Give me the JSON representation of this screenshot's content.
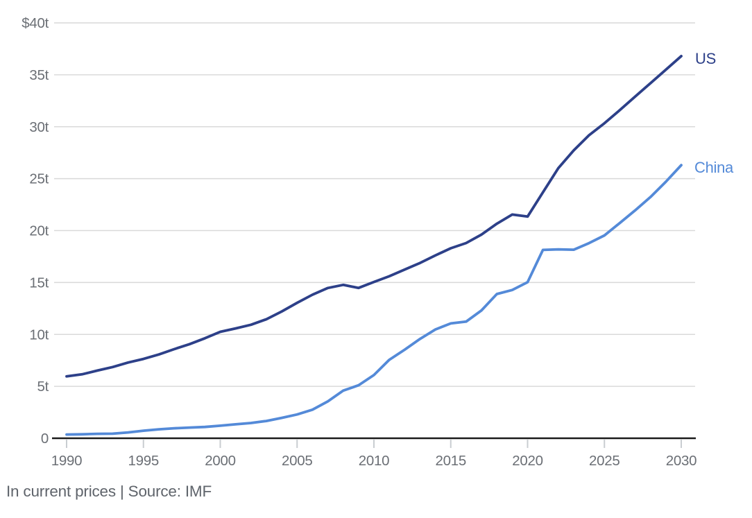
{
  "chart_data": {
    "type": "line",
    "title": "",
    "xlabel": "",
    "ylabel": "",
    "caption": "In current prices | Source: IMF",
    "grid": true,
    "legend_position": "end-of-line-right",
    "xlim": [
      1990,
      2030
    ],
    "ylim": [
      0,
      40
    ],
    "xticks": [
      1990,
      1995,
      2000,
      2005,
      2010,
      2015,
      2020,
      2025,
      2030
    ],
    "yticks": [
      {
        "value": 40,
        "label": "$40t"
      },
      {
        "value": 35,
        "label": "35t"
      },
      {
        "value": 30,
        "label": "30t"
      },
      {
        "value": 25,
        "label": "25t"
      },
      {
        "value": 20,
        "label": "20t"
      },
      {
        "value": 15,
        "label": "15t"
      },
      {
        "value": 10,
        "label": "10t"
      },
      {
        "value": 5,
        "label": "5t"
      },
      {
        "value": 0,
        "label": "0"
      }
    ],
    "colors": {
      "grid": "#d9d9d9",
      "axis": "#1a1a1a",
      "tick_mark": "#c9cdd1",
      "tick_text": "#6b6f75",
      "caption_text": "#5f646b",
      "us": "#2d4089",
      "china": "#548ad8"
    },
    "x": [
      1990,
      1991,
      1992,
      1993,
      1994,
      1995,
      1996,
      1997,
      1998,
      1999,
      2000,
      2001,
      2002,
      2003,
      2004,
      2005,
      2006,
      2007,
      2008,
      2009,
      2010,
      2011,
      2012,
      2013,
      2014,
      2015,
      2016,
      2017,
      2018,
      2019,
      2020,
      2021,
      2022,
      2023,
      2024,
      2025,
      2026,
      2027,
      2028,
      2029,
      2030
    ],
    "series": [
      {
        "id": "us",
        "name": "US",
        "color": "#2d4089",
        "values": [
          5.96,
          6.16,
          6.52,
          6.86,
          7.29,
          7.64,
          8.07,
          8.58,
          9.06,
          9.63,
          10.25,
          10.58,
          10.93,
          11.46,
          12.21,
          13.04,
          13.82,
          14.47,
          14.77,
          14.48,
          15.05,
          15.6,
          16.25,
          16.88,
          17.61,
          18.3,
          18.8,
          19.61,
          20.66,
          21.54,
          21.35,
          23.68,
          26.01,
          27.72,
          29.18,
          30.34,
          31.6,
          32.9,
          34.2,
          35.5,
          36.8
        ]
      },
      {
        "id": "china",
        "name": "China",
        "color": "#548ad8",
        "values": [
          0.36,
          0.38,
          0.43,
          0.44,
          0.56,
          0.73,
          0.86,
          0.96,
          1.03,
          1.09,
          1.21,
          1.34,
          1.47,
          1.66,
          1.96,
          2.29,
          2.75,
          3.55,
          4.59,
          5.1,
          6.09,
          7.55,
          8.53,
          9.57,
          10.48,
          11.06,
          11.23,
          12.31,
          13.89,
          14.28,
          15.03,
          18.14,
          18.19,
          18.16,
          18.79,
          19.53,
          20.73,
          21.94,
          23.23,
          24.71,
          26.3
        ]
      }
    ]
  }
}
